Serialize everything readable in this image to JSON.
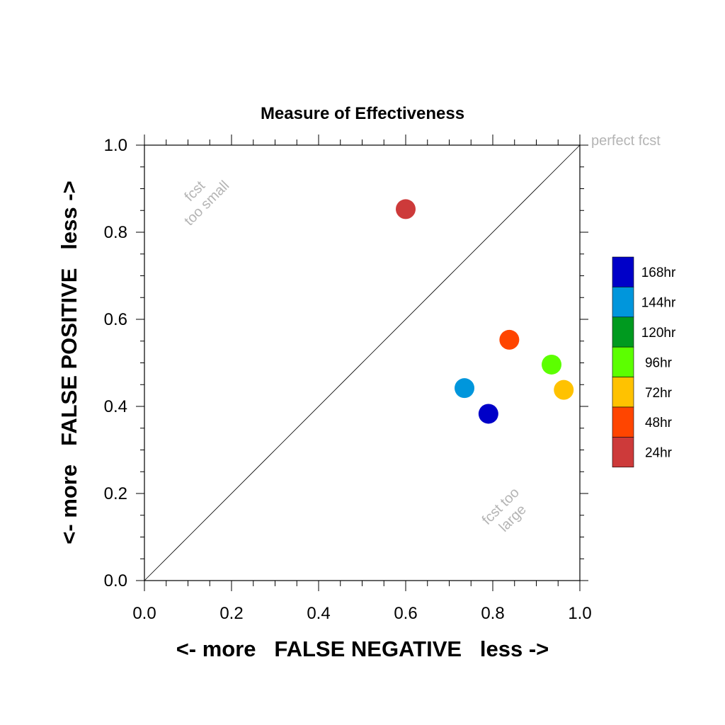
{
  "chart_data": {
    "type": "scatter",
    "title": "Measure of Effectiveness",
    "xlabel": "<- more   FALSE NEGATIVE   less ->",
    "ylabel": "<- more   FALSE POSITIVE   less ->",
    "xlim": [
      0,
      1
    ],
    "ylim": [
      0,
      1
    ],
    "xticks": [
      "0.0",
      "0.2",
      "0.4",
      "0.6",
      "0.8",
      "1.0"
    ],
    "yticks": [
      "0.0",
      "0.2",
      "0.4",
      "0.6",
      "0.8",
      "1.0"
    ],
    "grid": false,
    "legend_position": "right",
    "annotations": {
      "perfect": "perfect fcst",
      "small_line1": "fcst",
      "small_line2": "too small",
      "large_line1": "fcst too",
      "large_line2": "large"
    },
    "series": [
      {
        "name": "168hr",
        "color": "#0000c8",
        "x": 0.79,
        "y": 0.383
      },
      {
        "name": "144hr",
        "color": "#0096dc",
        "x": 0.735,
        "y": 0.442
      },
      {
        "name": "120hr",
        "color": "#009a1f",
        "x": null,
        "y": null
      },
      {
        "name": "96hr",
        "color": "#5cff00",
        "x": 0.935,
        "y": 0.496
      },
      {
        "name": "72hr",
        "color": "#ffc200",
        "x": 0.963,
        "y": 0.438
      },
      {
        "name": "48hr",
        "color": "#ff4500",
        "x": 0.838,
        "y": 0.553
      },
      {
        "name": "24hr",
        "color": "#cd3a3a",
        "x": 0.6,
        "y": 0.853
      }
    ]
  }
}
